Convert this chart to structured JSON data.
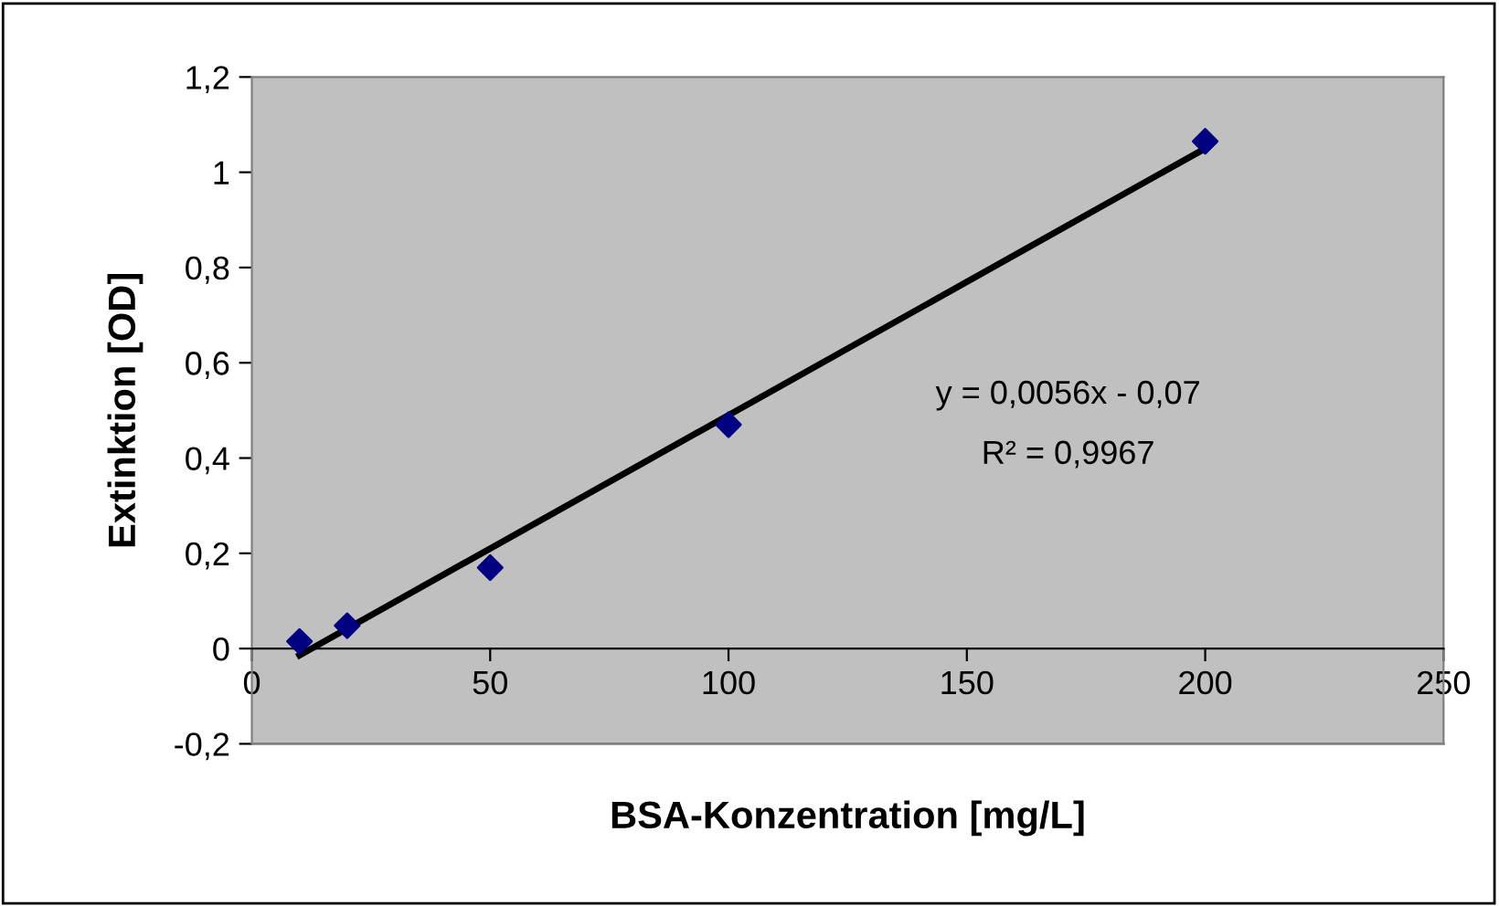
{
  "chart_data": {
    "type": "scatter",
    "xlabel": "BSA-Konzentration [mg/L]",
    "ylabel": "Extinktion [OD]",
    "x": [
      10,
      20,
      50,
      100,
      200
    ],
    "series": [
      {
        "color": "#000080",
        "marker": "diamond",
        "values": [
          0.015,
          0.048,
          0.17,
          0.47,
          1.065
        ]
      },
      {
        "type": "line",
        "color": "#000000",
        "marker": "none",
        "line_style": "solid",
        "x": [
          10,
          200
        ],
        "values": [
          -0.014,
          1.05
        ]
      }
    ],
    "annotations": [
      "y = 0,0056x - 0,07",
      "R² = 0,9967"
    ],
    "xlim": [
      0,
      250
    ],
    "xticks": [
      0,
      50,
      100,
      150,
      200,
      250
    ],
    "ylim": [
      -0.2,
      1.2
    ],
    "yticks": [
      {
        "value": -0.2,
        "label": "-0,2"
      },
      0,
      {
        "value": 0.2,
        "label": "0,2"
      },
      {
        "value": 0.4,
        "label": "0,4"
      },
      {
        "value": 0.6,
        "label": "0,6"
      },
      {
        "value": 0.8,
        "label": "0,8"
      },
      1,
      {
        "value": 1.2,
        "label": "1,2"
      }
    ],
    "grid": false
  }
}
